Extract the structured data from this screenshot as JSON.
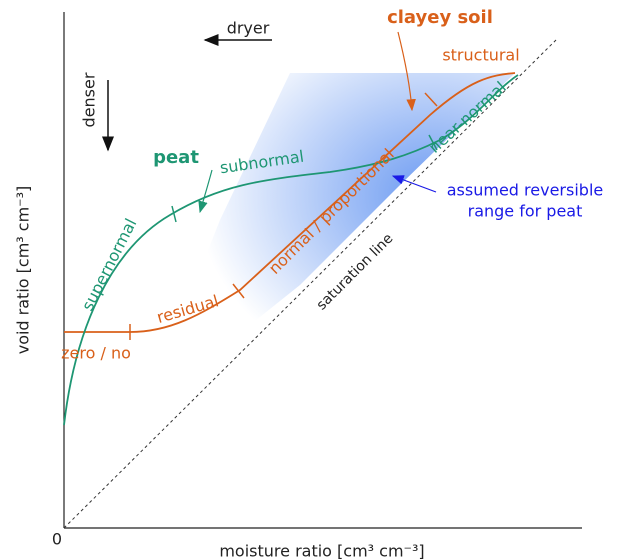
{
  "axes": {
    "origin": "0",
    "x_label": "moisture ratio [cm³ cm⁻³]",
    "y_label": "void ratio [cm³ cm⁻³]"
  },
  "annotations": {
    "dryer": "dryer",
    "denser": "denser",
    "saturation": "saturation line",
    "assumed_1": "assumed reversible",
    "assumed_2": "range for peat"
  },
  "clayey_soil": {
    "name": "clayey soil",
    "phases": [
      "zero / no",
      "residual",
      "normal / proportional",
      "structural"
    ]
  },
  "peat": {
    "name": "peat",
    "phases": [
      "supernormal",
      "subnormal",
      "near-normal"
    ]
  }
}
